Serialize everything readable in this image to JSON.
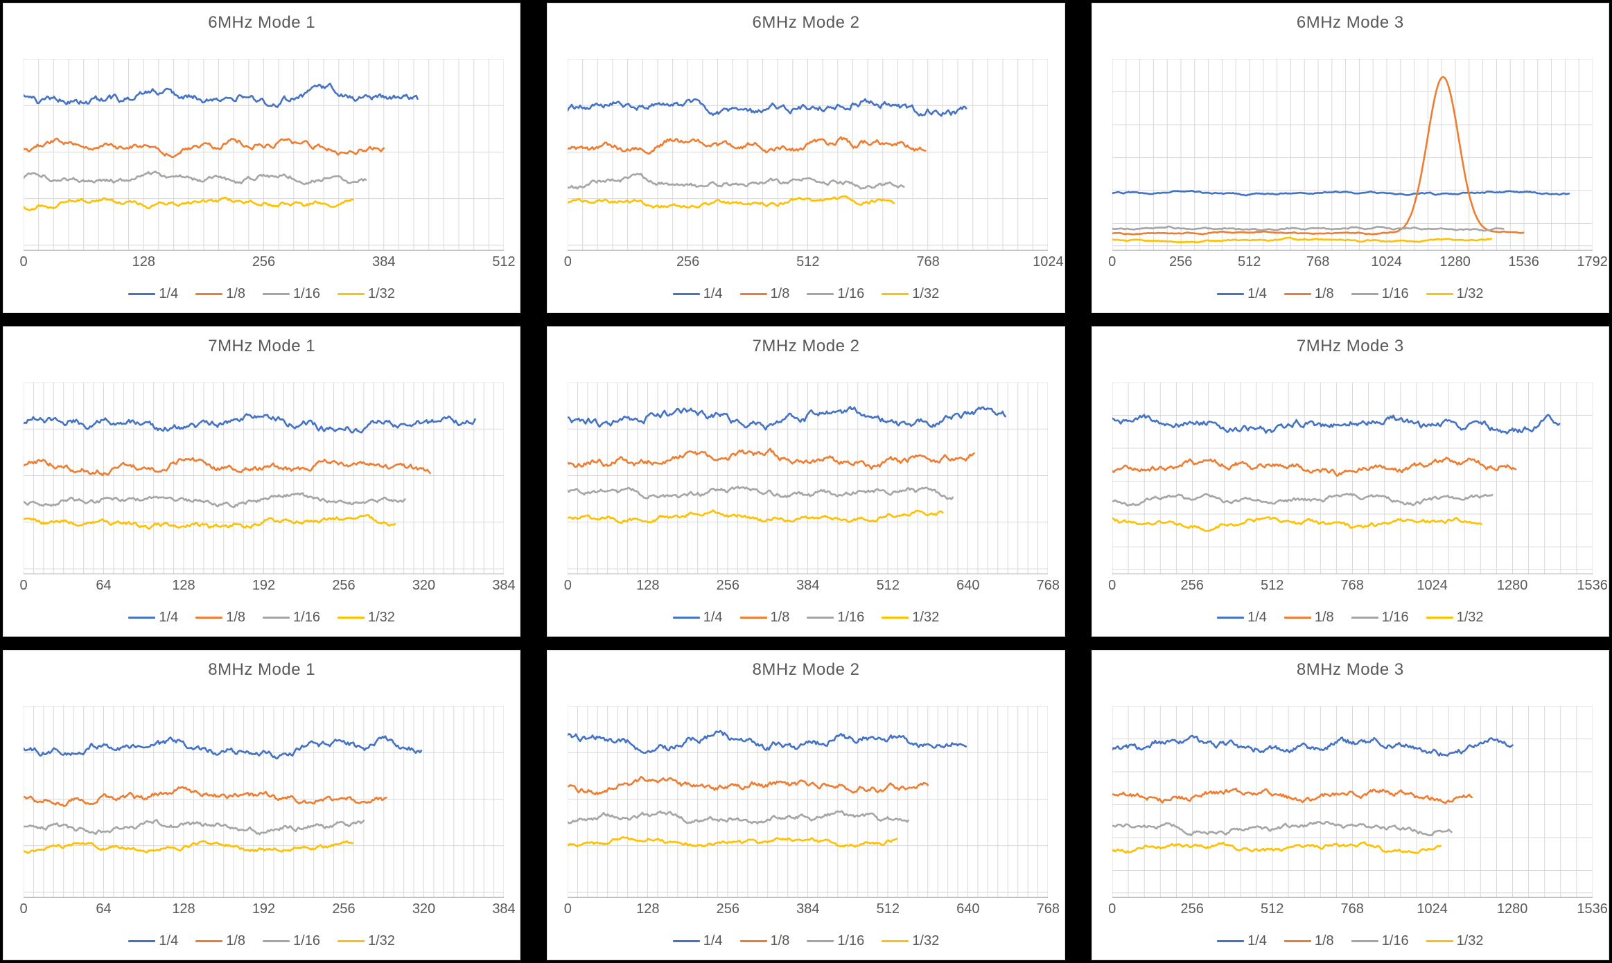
{
  "page": {
    "background": "#000000",
    "panel_background": "#FFFFFF",
    "panel_border": "#D9D9D9"
  },
  "styles": {
    "title_color": "#595959",
    "tick_label_color": "#595959",
    "grid_color": "#D9D9D9",
    "axis_line_color": "#BFBFBF",
    "series_palette": {
      "1/4": "#4472C4",
      "1/8": "#ED7D31",
      "1/16": "#A5A5A5",
      "1/32": "#FFC000"
    }
  },
  "legend": {
    "position": "bottom",
    "items": [
      {
        "label": "1/4",
        "color": "#4472C4"
      },
      {
        "label": "1/8",
        "color": "#ED7D31"
      },
      {
        "label": "1/16",
        "color": "#A5A5A5"
      },
      {
        "label": "1/32",
        "color": "#FFC000"
      }
    ]
  },
  "encoding_note": "Each series is a noisy horizontal trace; level_frac/amp_frac are the visual band center and half-amplitude measured as a fraction of plot height from the top; x_end is the x value where the trace stops.",
  "chart_data": [
    {
      "type": "line",
      "title": "6MHz Mode 1",
      "xlabel": "",
      "ylabel": "",
      "xlim": [
        0,
        512
      ],
      "x_major": 128,
      "x_minor": 16,
      "grid": true,
      "y_axis_labels_shown": false,
      "legend_position": "bottom",
      "y_rows": "wide",
      "x_ticks": [
        0,
        128,
        256,
        384,
        512
      ],
      "series": [
        {
          "name": "1/4",
          "color": "#4472C4",
          "level_frac": 0.2,
          "amp_frac": 0.05,
          "x_end": 420
        },
        {
          "name": "1/8",
          "color": "#ED7D31",
          "level_frac": 0.455,
          "amp_frac": 0.04,
          "x_end": 384
        },
        {
          "name": "1/16",
          "color": "#A5A5A5",
          "level_frac": 0.625,
          "amp_frac": 0.032,
          "x_end": 365
        },
        {
          "name": "1/32",
          "color": "#FFC000",
          "level_frac": 0.75,
          "amp_frac": 0.03,
          "x_end": 351
        }
      ]
    },
    {
      "type": "line",
      "title": "6MHz Mode 2",
      "xlabel": "",
      "ylabel": "",
      "xlim": [
        0,
        1024
      ],
      "x_major": 256,
      "x_minor": 32,
      "grid": true,
      "y_axis_labels_shown": false,
      "legend_position": "bottom",
      "y_rows": "wide",
      "x_ticks": [
        0,
        256,
        512,
        768,
        1024
      ],
      "series": [
        {
          "name": "1/4",
          "color": "#4472C4",
          "level_frac": 0.25,
          "amp_frac": 0.05,
          "x_end": 850
        },
        {
          "name": "1/8",
          "color": "#ED7D31",
          "level_frac": 0.45,
          "amp_frac": 0.042,
          "x_end": 763
        },
        {
          "name": "1/16",
          "color": "#A5A5A5",
          "level_frac": 0.645,
          "amp_frac": 0.032,
          "x_end": 717
        },
        {
          "name": "1/32",
          "color": "#FFC000",
          "level_frac": 0.75,
          "amp_frac": 0.028,
          "x_end": 696
        }
      ]
    },
    {
      "type": "line",
      "title": "6MHz Mode 3",
      "xlabel": "",
      "ylabel": "",
      "xlim": [
        0,
        1792
      ],
      "x_major": 256,
      "x_minor": 51.2,
      "grid": true,
      "y_axis_labels_shown": false,
      "legend_position": "bottom",
      "y_rows": "narrow",
      "x_ticks": [
        0,
        256,
        512,
        768,
        1024,
        1280,
        1536,
        1792
      ],
      "series": [
        {
          "name": "1/4",
          "color": "#4472C4",
          "level_frac": 0.7,
          "amp_frac": 0.012,
          "x_end": 1704
        },
        {
          "name": "1/8",
          "color": "#ED7D31",
          "level_frac": 0.907,
          "amp_frac": 0.009,
          "x_end": 1534,
          "spike": {
            "center": 1234,
            "sigma": 58,
            "peak_level_frac": 0.094
          }
        },
        {
          "name": "1/16",
          "color": "#A5A5A5",
          "level_frac": 0.885,
          "amp_frac": 0.011,
          "x_end": 1459
        },
        {
          "name": "1/32",
          "color": "#FFC000",
          "level_frac": 0.945,
          "amp_frac": 0.01,
          "x_end": 1414
        }
      ]
    },
    {
      "type": "line",
      "title": "7MHz Mode 1",
      "xlabel": "",
      "ylabel": "",
      "xlim": [
        0,
        384
      ],
      "x_major": 64,
      "x_minor": 8,
      "grid": true,
      "y_axis_labels_shown": false,
      "legend_position": "bottom",
      "y_rows": "wide",
      "x_ticks": [
        0,
        64,
        128,
        192,
        256,
        320,
        384
      ],
      "series": [
        {
          "name": "1/4",
          "color": "#4472C4",
          "level_frac": 0.215,
          "amp_frac": 0.048,
          "x_end": 361
        },
        {
          "name": "1/8",
          "color": "#ED7D31",
          "level_frac": 0.44,
          "amp_frac": 0.042,
          "x_end": 325
        },
        {
          "name": "1/16",
          "color": "#A5A5A5",
          "level_frac": 0.615,
          "amp_frac": 0.032,
          "x_end": 305
        },
        {
          "name": "1/32",
          "color": "#FFC000",
          "level_frac": 0.735,
          "amp_frac": 0.032,
          "x_end": 297
        }
      ]
    },
    {
      "type": "line",
      "title": "7MHz Mode 2",
      "xlabel": "",
      "ylabel": "",
      "xlim": [
        0,
        768
      ],
      "x_major": 128,
      "x_minor": 16,
      "grid": true,
      "y_axis_labels_shown": false,
      "legend_position": "bottom",
      "y_rows": "wide",
      "x_ticks": [
        0,
        128,
        256,
        384,
        512,
        640,
        768
      ],
      "series": [
        {
          "name": "1/4",
          "color": "#4472C4",
          "level_frac": 0.185,
          "amp_frac": 0.052,
          "x_end": 700
        },
        {
          "name": "1/8",
          "color": "#ED7D31",
          "level_frac": 0.4,
          "amp_frac": 0.045,
          "x_end": 650
        },
        {
          "name": "1/16",
          "color": "#A5A5A5",
          "level_frac": 0.575,
          "amp_frac": 0.035,
          "x_end": 616
        },
        {
          "name": "1/32",
          "color": "#FFC000",
          "level_frac": 0.705,
          "amp_frac": 0.03,
          "x_end": 600
        }
      ]
    },
    {
      "type": "line",
      "title": "7MHz Mode 3",
      "xlabel": "",
      "ylabel": "",
      "xlim": [
        0,
        1536
      ],
      "x_major": 256,
      "x_minor": 51.2,
      "grid": true,
      "y_axis_labels_shown": false,
      "legend_position": "bottom",
      "y_rows": "narrow",
      "x_ticks": [
        0,
        256,
        512,
        768,
        1024,
        1280,
        1536
      ],
      "series": [
        {
          "name": "1/4",
          "color": "#4472C4",
          "level_frac": 0.22,
          "amp_frac": 0.05,
          "x_end": 1430
        },
        {
          "name": "1/8",
          "color": "#ED7D31",
          "level_frac": 0.44,
          "amp_frac": 0.042,
          "x_end": 1290
        },
        {
          "name": "1/16",
          "color": "#A5A5A5",
          "level_frac": 0.61,
          "amp_frac": 0.032,
          "x_end": 1215
        },
        {
          "name": "1/32",
          "color": "#FFC000",
          "level_frac": 0.735,
          "amp_frac": 0.03,
          "x_end": 1180
        }
      ]
    },
    {
      "type": "line",
      "title": "8MHz Mode 1",
      "xlabel": "",
      "ylabel": "",
      "xlim": [
        0,
        384
      ],
      "x_major": 64,
      "x_minor": 8,
      "grid": true,
      "y_axis_labels_shown": false,
      "legend_position": "bottom",
      "y_rows": "wide",
      "x_ticks": [
        0,
        64,
        128,
        192,
        256,
        320,
        384
      ],
      "series": [
        {
          "name": "1/4",
          "color": "#4472C4",
          "level_frac": 0.22,
          "amp_frac": 0.048,
          "x_end": 318
        },
        {
          "name": "1/8",
          "color": "#ED7D31",
          "level_frac": 0.475,
          "amp_frac": 0.04,
          "x_end": 290
        },
        {
          "name": "1/16",
          "color": "#A5A5A5",
          "level_frac": 0.63,
          "amp_frac": 0.035,
          "x_end": 272
        },
        {
          "name": "1/32",
          "color": "#FFC000",
          "level_frac": 0.735,
          "amp_frac": 0.028,
          "x_end": 263
        }
      ]
    },
    {
      "type": "line",
      "title": "8MHz Mode 2",
      "xlabel": "",
      "ylabel": "",
      "xlim": [
        0,
        768
      ],
      "x_major": 128,
      "x_minor": 16,
      "grid": true,
      "y_axis_labels_shown": false,
      "legend_position": "bottom",
      "y_rows": "wide",
      "x_ticks": [
        0,
        128,
        256,
        384,
        512,
        640,
        768
      ],
      "series": [
        {
          "name": "1/4",
          "color": "#4472C4",
          "level_frac": 0.185,
          "amp_frac": 0.05,
          "x_end": 637
        },
        {
          "name": "1/8",
          "color": "#ED7D31",
          "level_frac": 0.415,
          "amp_frac": 0.042,
          "x_end": 576
        },
        {
          "name": "1/16",
          "color": "#A5A5A5",
          "level_frac": 0.585,
          "amp_frac": 0.035,
          "x_end": 545
        },
        {
          "name": "1/32",
          "color": "#FFC000",
          "level_frac": 0.71,
          "amp_frac": 0.028,
          "x_end": 526
        }
      ]
    },
    {
      "type": "line",
      "title": "8MHz Mode 3",
      "xlabel": "",
      "ylabel": "",
      "xlim": [
        0,
        1536
      ],
      "x_major": 256,
      "x_minor": 51.2,
      "grid": true,
      "y_axis_labels_shown": false,
      "legend_position": "bottom",
      "y_rows": "narrow",
      "x_ticks": [
        0,
        256,
        512,
        768,
        1024,
        1280,
        1536
      ],
      "series": [
        {
          "name": "1/4",
          "color": "#4472C4",
          "level_frac": 0.21,
          "amp_frac": 0.048,
          "x_end": 1280
        },
        {
          "name": "1/8",
          "color": "#ED7D31",
          "level_frac": 0.465,
          "amp_frac": 0.04,
          "x_end": 1150
        },
        {
          "name": "1/16",
          "color": "#A5A5A5",
          "level_frac": 0.633,
          "amp_frac": 0.032,
          "x_end": 1085
        },
        {
          "name": "1/32",
          "color": "#FFC000",
          "level_frac": 0.737,
          "amp_frac": 0.028,
          "x_end": 1050
        }
      ]
    }
  ]
}
